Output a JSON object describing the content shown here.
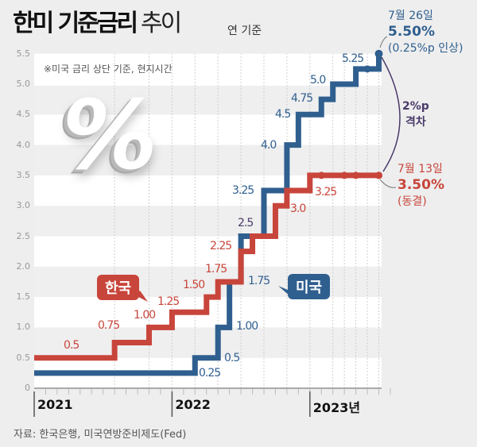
{
  "header": {
    "title_bold": "한미 기준금리",
    "title_light": "추이",
    "unit": "연 기준"
  },
  "note": "※미국 금리 상단 기준, 현지시간",
  "decoration": {
    "percent_symbol": "%"
  },
  "legend": {
    "korea": "한국",
    "us": "미국"
  },
  "annotations": {
    "us_date": "7월 26일",
    "us_rate": "5.50%",
    "us_change": "(0.25%p 인상)",
    "gap_value": "2%p",
    "gap_label": "격차",
    "kr_date": "7월 13일",
    "kr_rate": "3.50%",
    "kr_change": "(동결)"
  },
  "source": "자료: 한국은행, 미국연방준비제도(Fed)",
  "colors": {
    "korea": "#c8453b",
    "us": "#2f5f8f",
    "gap": "#4a3a6a"
  },
  "chart_data": {
    "type": "line",
    "step": true,
    "ylim": [
      0,
      5.5
    ],
    "yticks": [
      "0",
      "0.5",
      "1.0",
      "1.5",
      "2.0",
      "2.5",
      "3.0",
      "3.5",
      "4.0",
      "4.5",
      "5.0",
      "5.5"
    ],
    "xlim": [
      "2021-01",
      "2023-08"
    ],
    "xtick_labels": [
      "2021",
      "2022",
      "2023년"
    ],
    "grid": "alternating horizontal bands",
    "series": [
      {
        "name": "한국",
        "points": [
          {
            "date": "2021-01",
            "value": 0.5,
            "label": "0.5"
          },
          {
            "date": "2021-08",
            "value": 0.75,
            "label": "0.75"
          },
          {
            "date": "2021-11",
            "value": 1.0,
            "label": "1.00"
          },
          {
            "date": "2022-01",
            "value": 1.25,
            "label": "1.25"
          },
          {
            "date": "2022-04",
            "value": 1.5,
            "label": "1.50"
          },
          {
            "date": "2022-05",
            "value": 1.75,
            "label": "1.75"
          },
          {
            "date": "2022-07",
            "value": 2.25,
            "label": "2.25"
          },
          {
            "date": "2022-08",
            "value": 2.5,
            "label": ""
          },
          {
            "date": "2022-10",
            "value": 3.0,
            "label": "3.0"
          },
          {
            "date": "2022-11",
            "value": 3.25,
            "label": "3.25"
          },
          {
            "date": "2023-01",
            "value": 3.5,
            "label": ""
          }
        ],
        "holds": [
          "2023-02",
          "2023-04",
          "2023-05",
          "2023-07"
        ]
      },
      {
        "name": "미국",
        "points": [
          {
            "date": "2021-01",
            "value": 0.25,
            "label": "0.25"
          },
          {
            "date": "2022-03",
            "value": 0.5,
            "label": "0.5"
          },
          {
            "date": "2022-05",
            "value": 1.0,
            "label": "1.00"
          },
          {
            "date": "2022-06",
            "value": 1.75,
            "label": "1.75"
          },
          {
            "date": "2022-07",
            "value": 2.5,
            "label": "2.5"
          },
          {
            "date": "2022-09",
            "value": 3.25,
            "label": "3.25"
          },
          {
            "date": "2022-11",
            "value": 4.0,
            "label": "4.0"
          },
          {
            "date": "2022-12",
            "value": 4.5,
            "label": "4.5"
          },
          {
            "date": "2023-02",
            "value": 4.75,
            "label": "4.75"
          },
          {
            "date": "2023-03",
            "value": 5.0,
            "label": "5.0"
          },
          {
            "date": "2023-05",
            "value": 5.25,
            "label": "5.25"
          },
          {
            "date": "2023-07",
            "value": 5.5,
            "label": ""
          }
        ],
        "holds": [
          "2023-06"
        ]
      }
    ]
  }
}
